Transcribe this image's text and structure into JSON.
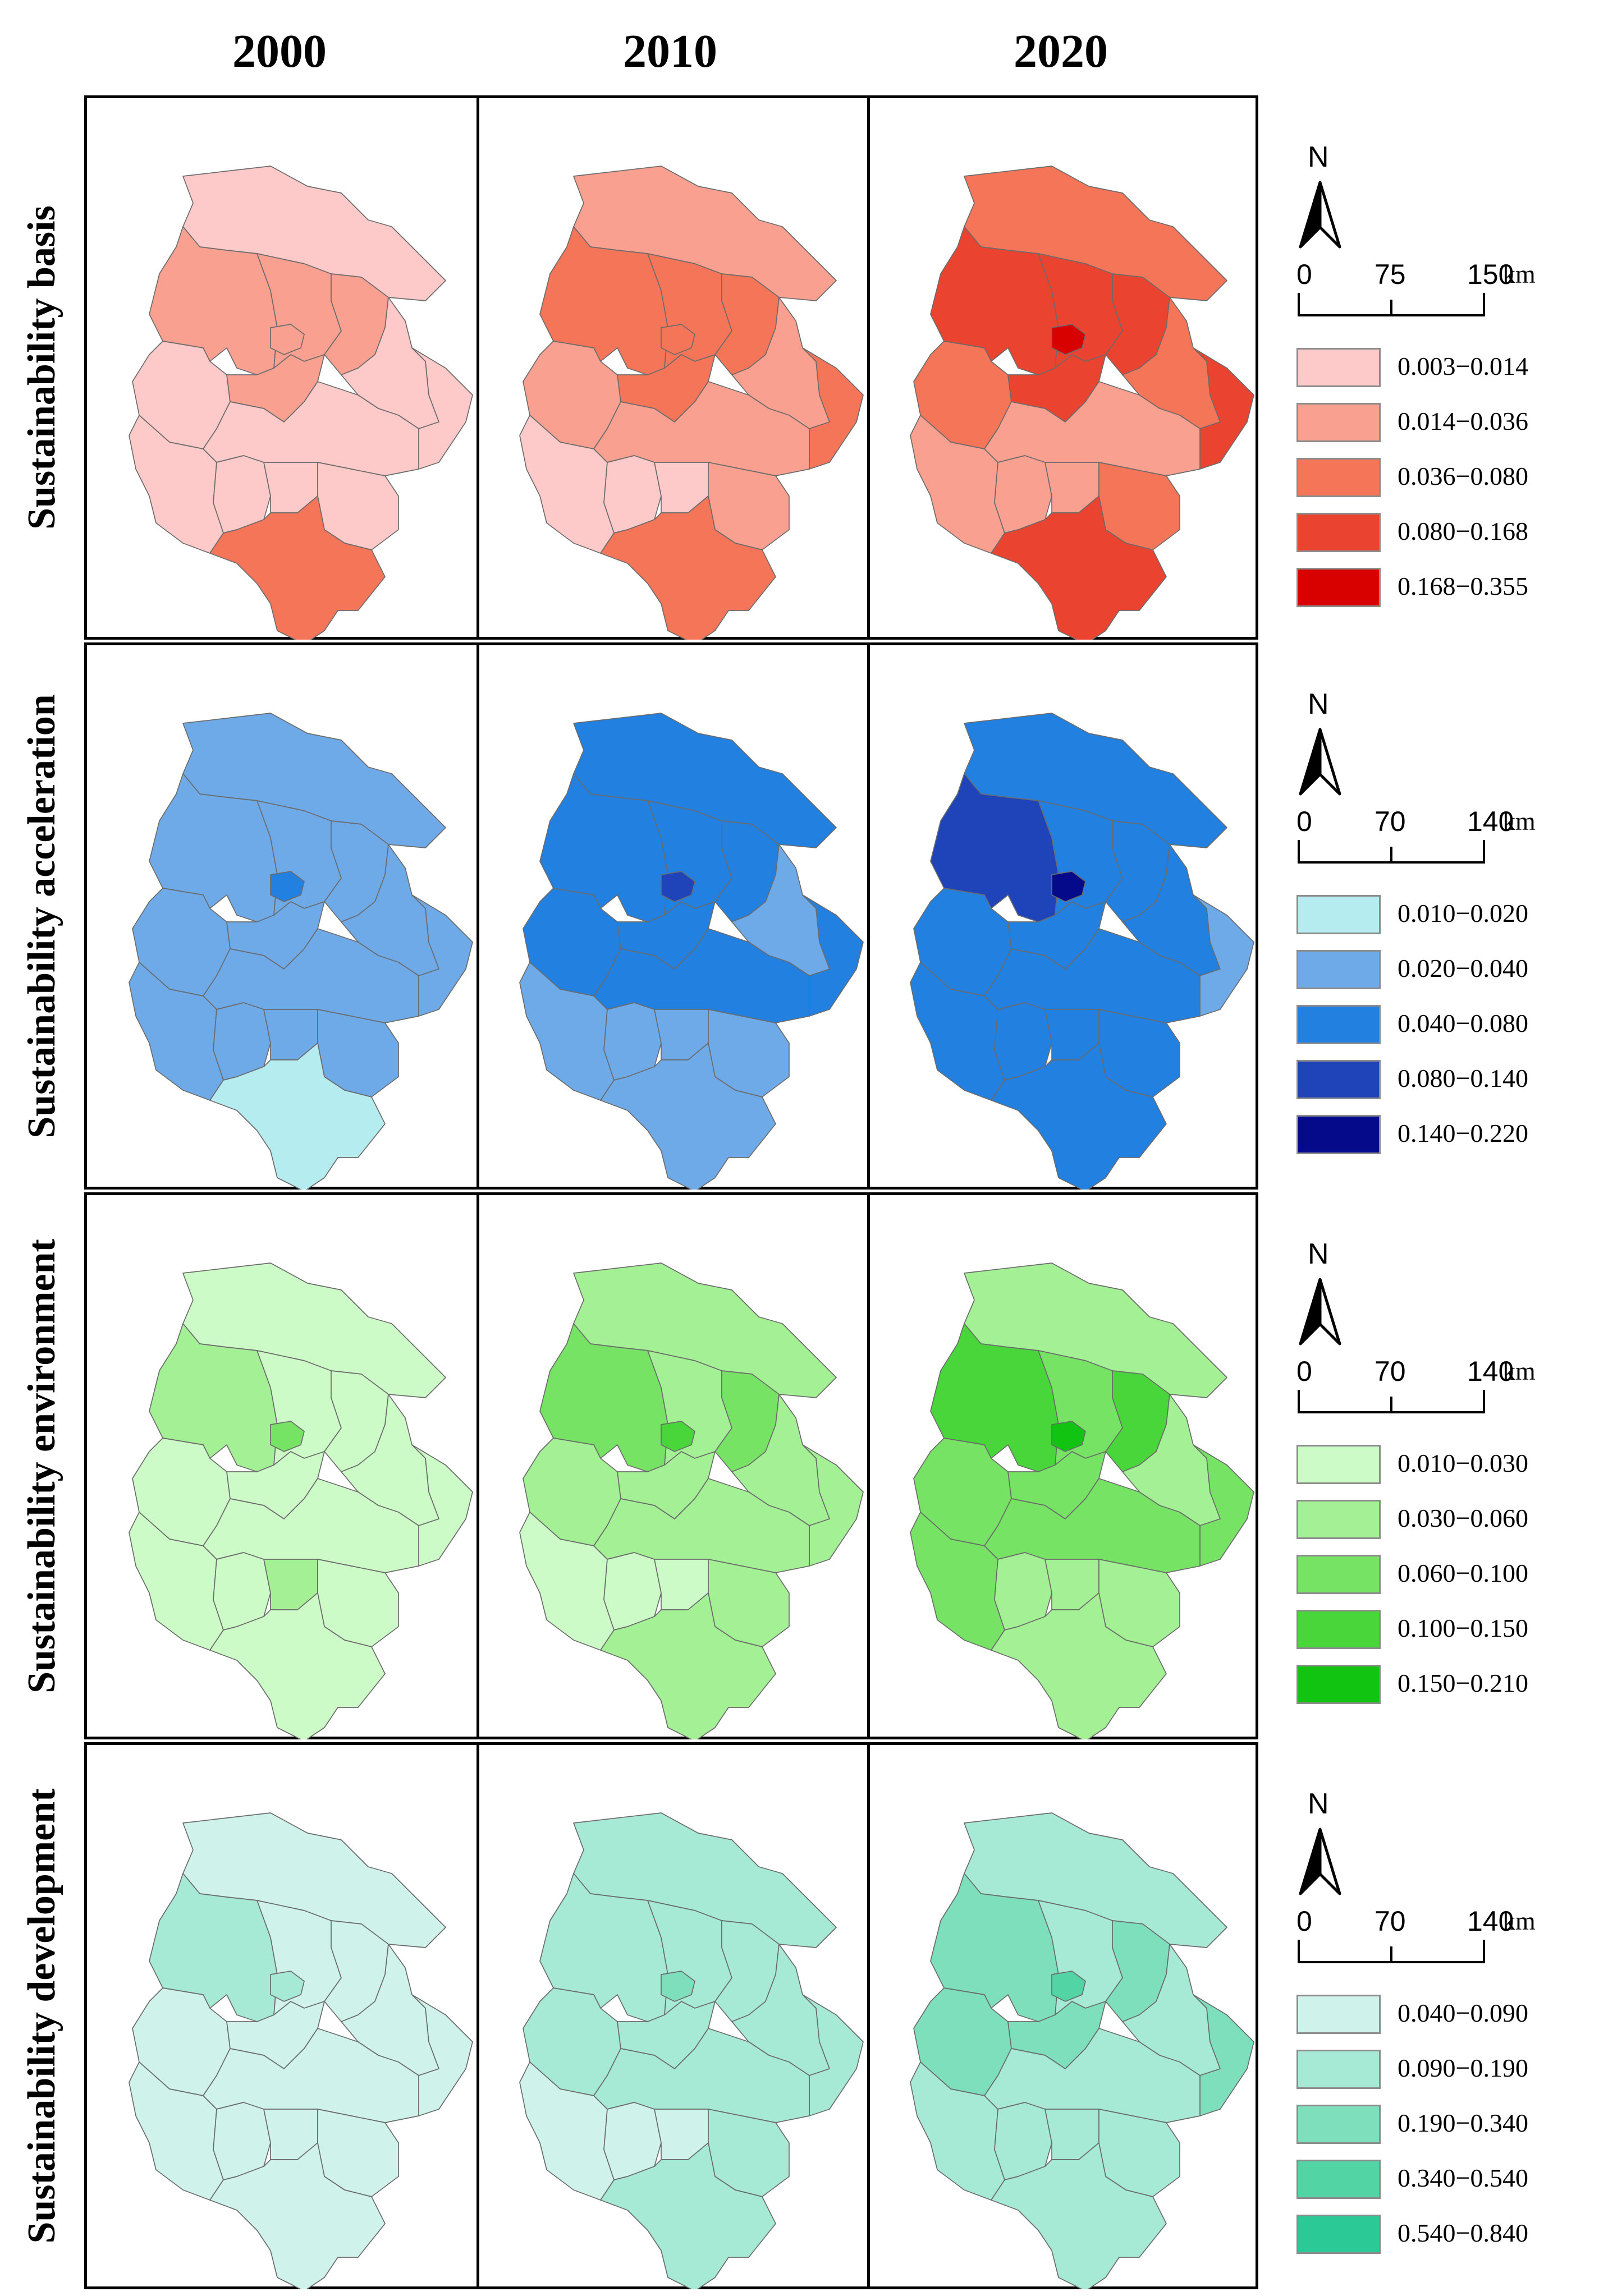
{
  "years": [
    "2000",
    "2010",
    "2020"
  ],
  "rows": [
    {
      "label": "Sustainability basis",
      "scale": {
        "ticks": [
          "0",
          "75",
          "150"
        ],
        "unit": "km"
      },
      "classes": [
        {
          "range": "0.003−0.014",
          "color": "#fdc9c9"
        },
        {
          "range": "0.014−0.036",
          "color": "#f9a090"
        },
        {
          "range": "0.036−0.080",
          "color": "#f57559"
        },
        {
          "range": "0.080−0.168",
          "color": "#ea4330"
        },
        {
          "range": "0.168−0.355",
          "color": "#d90000"
        }
      ],
      "maps": [
        [
          0,
          1,
          1,
          1,
          0,
          1,
          0,
          0,
          0,
          0,
          0,
          0,
          0,
          2
        ],
        [
          1,
          2,
          2,
          2,
          1,
          2,
          1,
          2,
          0,
          1,
          0,
          0,
          1,
          2
        ],
        [
          2,
          3,
          3,
          3,
          2,
          3,
          2,
          3,
          1,
          1,
          1,
          1,
          2,
          3
        ]
      ],
      "center_class": [
        1,
        2,
        4
      ]
    },
    {
      "label": "Sustainability acceleration",
      "scale": {
        "ticks": [
          "0",
          "70",
          "140"
        ],
        "unit": "km"
      },
      "classes": [
        {
          "range": "0.010−0.020",
          "color": "#b5ecf0"
        },
        {
          "range": "0.020−0.040",
          "color": "#6eaae8"
        },
        {
          "range": "0.040−0.080",
          "color": "#2180e0"
        },
        {
          "range": "0.080−0.140",
          "color": "#1f43b8"
        },
        {
          "range": "0.140−0.220",
          "color": "#050a8a"
        }
      ],
      "maps": [
        [
          1,
          1,
          1,
          1,
          1,
          1,
          1,
          1,
          1,
          1,
          1,
          1,
          1,
          0
        ],
        [
          2,
          2,
          2,
          2,
          2,
          2,
          1,
          2,
          1,
          2,
          1,
          1,
          1,
          1
        ],
        [
          2,
          3,
          2,
          2,
          2,
          2,
          2,
          1,
          2,
          2,
          2,
          2,
          2,
          2
        ]
      ],
      "center_class": [
        2,
        3,
        4
      ]
    },
    {
      "label": "Sustainability environment",
      "scale": {
        "ticks": [
          "0",
          "70",
          "140"
        ],
        "unit": "km"
      },
      "classes": [
        {
          "range": "0.010−0.030",
          "color": "#cdfbc8"
        },
        {
          "range": "0.030−0.060",
          "color": "#a3f095"
        },
        {
          "range": "0.060−0.100",
          "color": "#76e365"
        },
        {
          "range": "0.100−0.150",
          "color": "#48d63a"
        },
        {
          "range": "0.150−0.210",
          "color": "#12c412"
        }
      ],
      "maps": [
        [
          0,
          1,
          0,
          0,
          0,
          0,
          0,
          0,
          0,
          0,
          0,
          1,
          0,
          0
        ],
        [
          1,
          2,
          1,
          2,
          1,
          1,
          1,
          1,
          0,
          1,
          0,
          0,
          1,
          1
        ],
        [
          1,
          3,
          2,
          3,
          2,
          2,
          1,
          2,
          2,
          2,
          1,
          1,
          1,
          1
        ]
      ],
      "center_class": [
        2,
        3,
        4
      ]
    },
    {
      "label": "Sustainability development",
      "scale": {
        "ticks": [
          "0",
          "70",
          "140"
        ],
        "unit": "km"
      },
      "classes": [
        {
          "range": "0.040−0.090",
          "color": "#cff3ea"
        },
        {
          "range": "0.090−0.190",
          "color": "#a6ead5"
        },
        {
          "range": "0.190−0.340",
          "color": "#7ddfbb"
        },
        {
          "range": "0.340−0.540",
          "color": "#52d4a4"
        },
        {
          "range": "0.540−0.840",
          "color": "#2ac996"
        }
      ],
      "maps": [
        [
          0,
          1,
          0,
          0,
          0,
          0,
          0,
          0,
          0,
          0,
          0,
          0,
          0,
          0
        ],
        [
          1,
          1,
          1,
          1,
          1,
          1,
          1,
          1,
          0,
          1,
          0,
          0,
          1,
          1
        ],
        [
          1,
          2,
          1,
          2,
          2,
          2,
          1,
          2,
          1,
          1,
          1,
          1,
          1,
          1
        ]
      ],
      "center_class": [
        1,
        2,
        3
      ]
    }
  ]
}
